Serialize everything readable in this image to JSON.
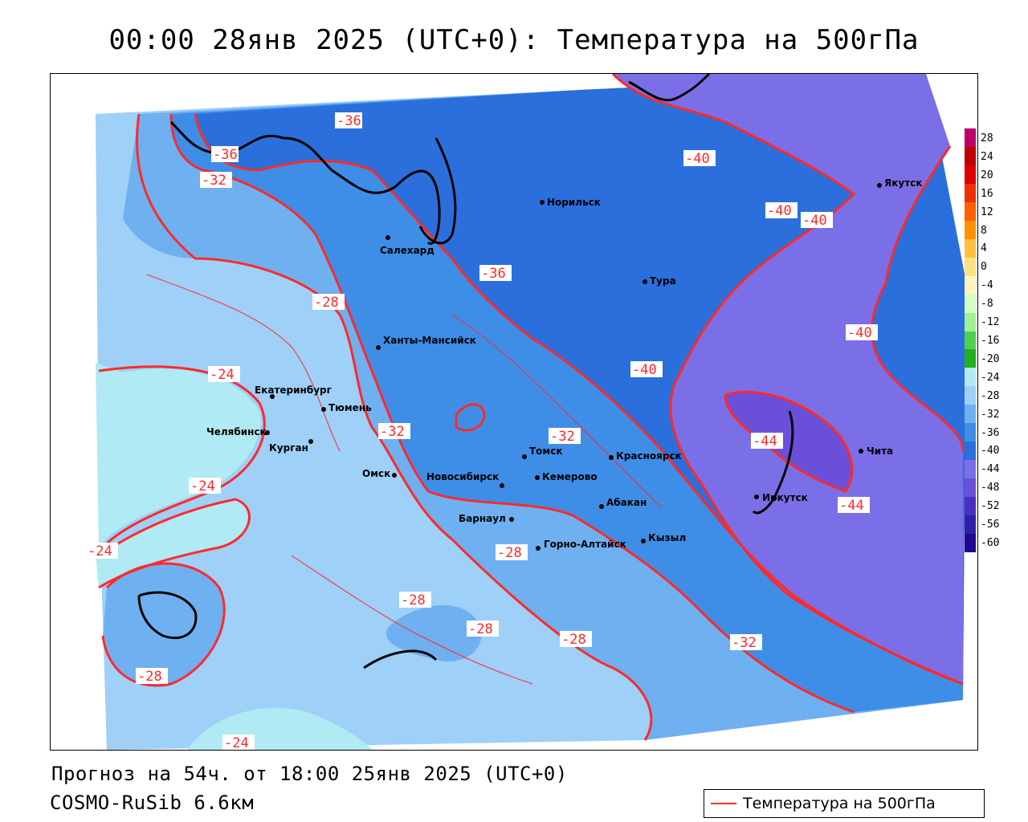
{
  "header": {
    "title": "00:00 28янв 2025 (UTC+0): Температура на 500гПа"
  },
  "footer": {
    "forecast": "Прогноз на 54ч. от 18:00 25янв 2025 (UTC+0)",
    "model": "COSMO-RuSib 6.6км"
  },
  "legend": {
    "label": "Температура на 500гПа",
    "line_color": "#ff2a2a"
  },
  "colorbar": {
    "ticks": [
      "28",
      "24",
      "20",
      "16",
      "12",
      "8",
      "4",
      "0",
      "-4",
      "-8",
      "-12",
      "-16",
      "-20",
      "-24",
      "-28",
      "-32",
      "-36",
      "-40",
      "-44",
      "-48",
      "-52",
      "-56",
      "-60"
    ],
    "colors": [
      "#c0006a",
      "#c00000",
      "#e00000",
      "#f03000",
      "#ff6000",
      "#ff9000",
      "#ffc040",
      "#ffe080",
      "#fff4c0",
      "#d0ffc0",
      "#a0f090",
      "#50d050",
      "#20b020",
      "#b0eaf4",
      "#9ed0f8",
      "#6fb0f0",
      "#3e8ee8",
      "#2a6fdc",
      "#7b6fe8",
      "#6a50d8",
      "#4a30c0",
      "#3020a8",
      "#200890"
    ]
  },
  "cities": [
    {
      "name": "Норильск"
    },
    {
      "name": "Салехард"
    },
    {
      "name": "Тура"
    },
    {
      "name": "Якутск"
    },
    {
      "name": "Ханты-Мансийск"
    },
    {
      "name": "Екатеринбург"
    },
    {
      "name": "Тюмень"
    },
    {
      "name": "Челябинск"
    },
    {
      "name": "Курган"
    },
    {
      "name": "Омск"
    },
    {
      "name": "Новосибирск"
    },
    {
      "name": "Томск"
    },
    {
      "name": "Кемерово"
    },
    {
      "name": "Красноярск"
    },
    {
      "name": "Барнаул"
    },
    {
      "name": "Абакан"
    },
    {
      "name": "Горно-Алтайск"
    },
    {
      "name": "Кызыл"
    },
    {
      "name": "Иркутск"
    },
    {
      "name": "Чита"
    }
  ],
  "isolines": [
    {
      "label": "-36"
    },
    {
      "label": "-36"
    },
    {
      "label": "-32"
    },
    {
      "label": "-40"
    },
    {
      "label": "-40"
    },
    {
      "label": "-40"
    },
    {
      "label": "-36"
    },
    {
      "label": "-28"
    },
    {
      "label": "-40"
    },
    {
      "label": "-40"
    },
    {
      "label": "-24"
    },
    {
      "label": "-32"
    },
    {
      "label": "-32"
    },
    {
      "label": "-44"
    },
    {
      "label": "-24"
    },
    {
      "label": "-44"
    },
    {
      "label": "-28"
    },
    {
      "label": "-24"
    },
    {
      "label": "-28"
    },
    {
      "label": "-28"
    },
    {
      "label": "-28"
    },
    {
      "label": "-32"
    },
    {
      "label": "-28"
    },
    {
      "label": "-24"
    }
  ]
}
